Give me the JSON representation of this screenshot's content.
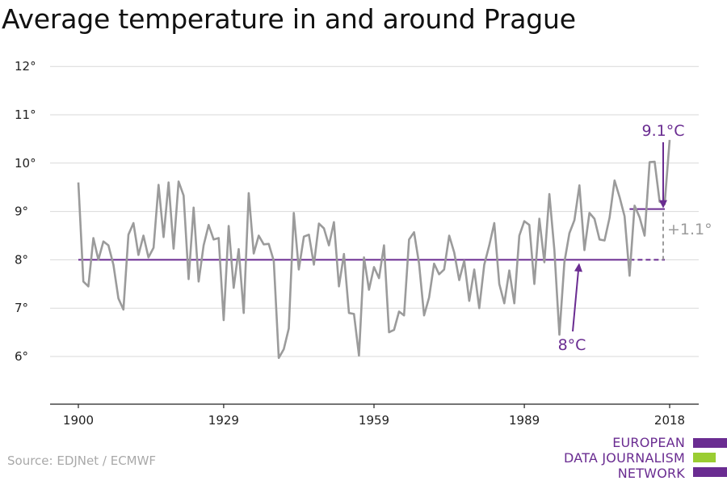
{
  "title": "Average temperature in and around Prague",
  "source": "Source: EDJNet / ECMWF",
  "logo": {
    "lines": [
      "EUROPEAN",
      "DATA JOURNALISM",
      "NETWORK"
    ],
    "colors": {
      "purple": "#6a2c91",
      "green": "#9acd32"
    }
  },
  "colors": {
    "series": "#9b9b9b",
    "mean": "#6a2c91",
    "grid": "#d9d9d9",
    "axis": "#222222"
  },
  "chart_data": {
    "type": "line",
    "title": "Average temperature in and around Prague",
    "xlim": [
      1900,
      2018
    ],
    "ylim": [
      5,
      12
    ],
    "x_ticks": [
      1900,
      1929,
      1959,
      1989,
      2018
    ],
    "y_ticks": [
      6,
      7,
      8,
      9,
      10,
      11,
      12
    ],
    "y_tick_labels": [
      "6°",
      "7°",
      "8°",
      "9°",
      "10°",
      "11°",
      "12°"
    ],
    "grid": "horizontal",
    "x": [
      1900,
      1901,
      1902,
      1903,
      1904,
      1905,
      1906,
      1907,
      1908,
      1909,
      1910,
      1911,
      1912,
      1913,
      1914,
      1915,
      1916,
      1917,
      1918,
      1919,
      1920,
      1921,
      1922,
      1923,
      1924,
      1925,
      1926,
      1927,
      1928,
      1929,
      1930,
      1931,
      1932,
      1933,
      1934,
      1935,
      1936,
      1937,
      1938,
      1939,
      1940,
      1941,
      1942,
      1943,
      1944,
      1945,
      1946,
      1947,
      1948,
      1949,
      1950,
      1951,
      1952,
      1953,
      1954,
      1955,
      1956,
      1957,
      1958,
      1959,
      1960,
      1961,
      1962,
      1963,
      1964,
      1965,
      1966,
      1967,
      1968,
      1969,
      1970,
      1971,
      1972,
      1973,
      1974,
      1975,
      1976,
      1977,
      1978,
      1979,
      1980,
      1981,
      1982,
      1983,
      1984,
      1985,
      1986,
      1987,
      1988,
      1989,
      1990,
      1991,
      1992,
      1993,
      1994,
      1995,
      1996,
      1997,
      1998,
      1999,
      2000,
      2001,
      2002,
      2003,
      2004,
      2005,
      2006,
      2007,
      2008,
      2009,
      2010,
      2011,
      2012,
      2013,
      2014,
      2015,
      2016,
      2017,
      2018
    ],
    "values": [
      9.6,
      7.55,
      7.45,
      8.45,
      8.0,
      8.38,
      8.3,
      7.9,
      7.2,
      6.97,
      8.52,
      8.76,
      8.1,
      8.5,
      8.05,
      8.25,
      9.55,
      8.47,
      9.6,
      8.23,
      9.62,
      9.33,
      7.6,
      9.08,
      7.55,
      8.3,
      8.72,
      8.42,
      8.45,
      6.75,
      8.7,
      7.42,
      8.22,
      6.9,
      9.38,
      8.13,
      8.5,
      8.32,
      8.33,
      7.98,
      5.97,
      6.15,
      6.58,
      8.97,
      7.8,
      8.48,
      8.52,
      7.9,
      8.75,
      8.65,
      8.3,
      8.78,
      7.45,
      8.12,
      6.9,
      6.88,
      6.02,
      8.05,
      7.38,
      7.85,
      7.62,
      8.3,
      6.5,
      6.55,
      6.93,
      6.85,
      8.42,
      8.57,
      7.92,
      6.85,
      7.22,
      7.92,
      7.7,
      7.8,
      8.5,
      8.15,
      7.58,
      7.98,
      7.15,
      7.8,
      7.0,
      7.9,
      8.3,
      8.76,
      7.5,
      7.1,
      7.78,
      7.1,
      8.5,
      8.8,
      8.72,
      7.5,
      8.85,
      7.95,
      9.36,
      8.2,
      6.45,
      7.95,
      8.55,
      8.82,
      9.54,
      8.2,
      8.97,
      8.85,
      8.42,
      8.4,
      8.87,
      9.64,
      9.3,
      8.9,
      7.67,
      9.12,
      8.88,
      8.5,
      10.02,
      10.03,
      9.2,
      9.15,
      10.48
    ],
    "mean_line": {
      "value": 8.0,
      "from": 1900,
      "to": 2018,
      "dashed_from": 2010
    },
    "recent_line": {
      "value": 9.05,
      "from": 2010,
      "to": 2018
    },
    "annotations": {
      "recent_label": "9.1°C",
      "baseline_label": "8°C",
      "difference_label": "+1.1°"
    }
  }
}
